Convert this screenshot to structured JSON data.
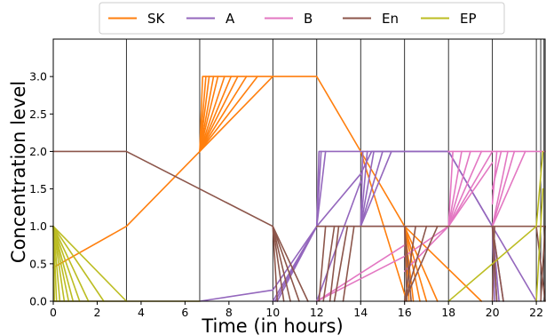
{
  "chart_data": {
    "type": "line",
    "title": "",
    "xlabel": "Time (in hours)",
    "ylabel": "Concentration level",
    "xlim": [
      0,
      22.4
    ],
    "ylim": [
      0,
      3.5
    ],
    "x_ticks": [
      0,
      2,
      4,
      6,
      8,
      10,
      12,
      14,
      16,
      18,
      20,
      22
    ],
    "y_ticks": [
      0.0,
      0.5,
      1.0,
      1.5,
      2.0,
      2.5,
      3.0
    ],
    "x_tick_labels": [
      "0",
      "2",
      "4",
      "6",
      "8",
      "10",
      "12",
      "14",
      "16",
      "18",
      "20",
      "22"
    ],
    "y_tick_labels": [
      "0.0",
      "0.5",
      "1.0",
      "1.5",
      "2.0",
      "2.5",
      "3.0"
    ],
    "grid": false,
    "legend_position": "top-outside",
    "phase_boundaries": [
      3.33,
      6.67,
      10.0,
      12.0,
      14.0,
      16.0,
      18.0,
      20.0,
      22.0,
      22.2,
      22.35
    ],
    "series": [
      {
        "name": "SK",
        "color": "#ff7f0e",
        "lines": [
          [
            [
              0,
              0.45
            ],
            [
              3.33,
              1.0
            ],
            [
              6.67,
              2.0
            ],
            [
              10.0,
              3.0
            ],
            [
              12.0,
              3.0
            ],
            [
              14.0,
              2.0
            ],
            [
              16.0,
              1.0
            ],
            [
              17.0,
              0.0
            ]
          ],
          [
            [
              6.67,
              2.0
            ],
            [
              6.8,
              3.0
            ],
            [
              10.0,
              3.0
            ]
          ],
          [
            [
              6.67,
              2.0
            ],
            [
              6.95,
              3.0
            ]
          ],
          [
            [
              6.67,
              2.0
            ],
            [
              7.1,
              3.0
            ]
          ],
          [
            [
              6.67,
              2.0
            ],
            [
              7.3,
              3.0
            ]
          ],
          [
            [
              6.67,
              2.0
            ],
            [
              7.5,
              3.0
            ]
          ],
          [
            [
              6.67,
              2.0
            ],
            [
              7.8,
              3.0
            ]
          ],
          [
            [
              6.67,
              2.0
            ],
            [
              8.1,
              3.0
            ]
          ],
          [
            [
              6.67,
              2.0
            ],
            [
              8.4,
              3.0
            ]
          ],
          [
            [
              6.67,
              2.0
            ],
            [
              8.8,
              3.0
            ]
          ],
          [
            [
              6.67,
              2.0
            ],
            [
              9.3,
              3.0
            ]
          ],
          [
            [
              14.0,
              2.0
            ],
            [
              16.1,
              0.0
            ]
          ],
          [
            [
              16.0,
              1.0
            ],
            [
              16.2,
              0.0
            ]
          ],
          [
            [
              16.0,
              1.0
            ],
            [
              16.4,
              0.0
            ]
          ],
          [
            [
              16.0,
              1.0
            ],
            [
              16.7,
              0.0
            ]
          ],
          [
            [
              16.0,
              1.0
            ],
            [
              17.5,
              0.0
            ]
          ],
          [
            [
              16.0,
              1.0
            ],
            [
              19.5,
              0.0
            ]
          ]
        ]
      },
      {
        "name": "A",
        "color": "#9467bd",
        "lines": [
          [
            [
              0,
              0.0
            ],
            [
              6.67,
              0.0
            ],
            [
              10.0,
              0.15
            ],
            [
              12.0,
              1.0
            ],
            [
              14.0,
              1.7
            ],
            [
              14.5,
              2.0
            ],
            [
              18.0,
              2.0
            ],
            [
              20.0,
              1.0
            ],
            [
              20.5,
              0.0
            ]
          ],
          [
            [
              10.0,
              0.0
            ],
            [
              12.0,
              1.0
            ],
            [
              16.0,
              1.0
            ]
          ],
          [
            [
              10.1,
              0.0
            ],
            [
              12.0,
              1.0
            ]
          ],
          [
            [
              10.2,
              0.0
            ],
            [
              12.0,
              1.0
            ]
          ],
          [
            [
              12.0,
              1.0
            ],
            [
              12.1,
              2.0
            ],
            [
              18.0,
              2.0
            ]
          ],
          [
            [
              12.0,
              1.0
            ],
            [
              12.2,
              2.0
            ]
          ],
          [
            [
              12.0,
              1.0
            ],
            [
              12.4,
              2.0
            ]
          ],
          [
            [
              12.0,
              0.0
            ],
            [
              14.0,
              1.6
            ]
          ],
          [
            [
              14.0,
              1.0
            ],
            [
              14.1,
              2.0
            ]
          ],
          [
            [
              14.0,
              1.0
            ],
            [
              14.3,
              2.0
            ]
          ],
          [
            [
              14.0,
              1.0
            ],
            [
              14.6,
              2.0
            ]
          ],
          [
            [
              14.0,
              1.0
            ],
            [
              15.0,
              2.0
            ]
          ],
          [
            [
              14.0,
              1.0
            ],
            [
              15.4,
              2.0
            ]
          ],
          [
            [
              18.0,
              2.0
            ],
            [
              20.0,
              1.0
            ],
            [
              20.3,
              0.0
            ]
          ],
          [
            [
              20.0,
              1.0
            ],
            [
              20.1,
              0.0
            ]
          ],
          [
            [
              20.0,
              1.0
            ],
            [
              20.2,
              0.0
            ]
          ],
          [
            [
              20.0,
              1.0
            ],
            [
              22.0,
              0.0
            ]
          ]
        ]
      },
      {
        "name": "B",
        "color": "#e377c2",
        "lines": [
          [
            [
              12.0,
              0.0
            ],
            [
              16.0,
              0.6
            ],
            [
              18.0,
              1.0
            ],
            [
              20.0,
              2.0
            ],
            [
              22.4,
              2.0
            ]
          ],
          [
            [
              12.0,
              0.0
            ],
            [
              16.0,
              0.75
            ]
          ],
          [
            [
              16.0,
              0.4
            ],
            [
              18.0,
              1.0
            ]
          ],
          [
            [
              18.0,
              1.0
            ],
            [
              18.2,
              2.0
            ]
          ],
          [
            [
              18.0,
              1.0
            ],
            [
              18.6,
              2.0
            ]
          ],
          [
            [
              18.0,
              1.0
            ],
            [
              19.0,
              2.0
            ]
          ],
          [
            [
              18.0,
              1.0
            ],
            [
              19.5,
              2.0
            ]
          ],
          [
            [
              18.0,
              1.0
            ],
            [
              20.0,
              1.85
            ]
          ],
          [
            [
              18.0,
              2.0
            ],
            [
              20.0,
              2.0
            ]
          ],
          [
            [
              20.0,
              1.5
            ],
            [
              20.4,
              2.0
            ]
          ],
          [
            [
              20.0,
              1.0
            ],
            [
              20.7,
              2.0
            ]
          ],
          [
            [
              20.0,
              1.0
            ],
            [
              21.0,
              2.0
            ]
          ],
          [
            [
              20.0,
              1.0
            ],
            [
              21.5,
              2.0
            ]
          ],
          [
            [
              20.0,
              1.3
            ],
            [
              20.2,
              2.0
            ]
          ]
        ]
      },
      {
        "name": "En",
        "color": "#8c564b",
        "lines": [
          [
            [
              0,
              2.0
            ],
            [
              3.33,
              2.0
            ],
            [
              10.0,
              1.0
            ],
            [
              10.5,
              0.0
            ]
          ],
          [
            [
              10.0,
              1.0
            ],
            [
              10.2,
              0.0
            ]
          ],
          [
            [
              10.0,
              1.0
            ],
            [
              10.8,
              0.0
            ]
          ],
          [
            [
              10.0,
              1.0
            ],
            [
              11.2,
              0.0
            ]
          ],
          [
            [
              10.0,
              1.0
            ],
            [
              11.6,
              0.0
            ]
          ],
          [
            [
              12.0,
              1.0
            ],
            [
              16.0,
              1.0
            ],
            [
              22.4,
              1.0
            ]
          ],
          [
            [
              12.1,
              0.0
            ],
            [
              12.4,
              1.0
            ]
          ],
          [
            [
              12.3,
              0.0
            ],
            [
              12.8,
              1.0
            ]
          ],
          [
            [
              12.6,
              0.0
            ],
            [
              13.0,
              1.0
            ]
          ],
          [
            [
              12.8,
              0.0
            ],
            [
              13.4,
              1.0
            ]
          ],
          [
            [
              13.2,
              0.0
            ],
            [
              13.7,
              1.0
            ]
          ],
          [
            [
              16.0,
              1.0
            ],
            [
              16.1,
              0.0
            ]
          ],
          [
            [
              16.0,
              1.0
            ],
            [
              16.3,
              0.0
            ]
          ],
          [
            [
              16.0,
              0.0
            ],
            [
              16.5,
              1.0
            ]
          ],
          [
            [
              16.0,
              0.0
            ],
            [
              17.0,
              1.0
            ]
          ],
          [
            [
              16.0,
              0.0
            ],
            [
              17.5,
              1.0
            ]
          ],
          [
            [
              20.0,
              1.0
            ],
            [
              20.2,
              0.0
            ]
          ],
          [
            [
              20.0,
              1.0
            ],
            [
              20.5,
              0.0
            ]
          ],
          [
            [
              20.0,
              0.0
            ],
            [
              20.1,
              1.0
            ]
          ],
          [
            [
              22.0,
              1.0
            ],
            [
              22.4,
              0.0
            ]
          ],
          [
            [
              22.2,
              0.0
            ],
            [
              22.4,
              1.0
            ]
          ]
        ]
      },
      {
        "name": "EP",
        "color": "#bcbd22",
        "lines": [
          [
            [
              0,
              1.0
            ],
            [
              0.05,
              0.0
            ],
            [
              6.67,
              0.0
            ]
          ],
          [
            [
              0,
              1.0
            ],
            [
              0.15,
              0.0
            ]
          ],
          [
            [
              0,
              1.0
            ],
            [
              0.3,
              0.0
            ]
          ],
          [
            [
              0,
              1.0
            ],
            [
              0.5,
              0.0
            ]
          ],
          [
            [
              0,
              1.0
            ],
            [
              0.7,
              0.0
            ]
          ],
          [
            [
              0,
              1.0
            ],
            [
              0.9,
              0.0
            ]
          ],
          [
            [
              0,
              1.0
            ],
            [
              1.2,
              0.0
            ]
          ],
          [
            [
              0,
              1.0
            ],
            [
              1.6,
              0.0
            ]
          ],
          [
            [
              0,
              1.0
            ],
            [
              2.3,
              0.0
            ]
          ],
          [
            [
              0,
              1.0
            ],
            [
              3.33,
              0.0
            ]
          ],
          [
            [
              18.0,
              0.0
            ],
            [
              20.0,
              0.5
            ],
            [
              22.0,
              1.0
            ],
            [
              22.3,
              2.0
            ]
          ],
          [
            [
              22.0,
              0.0
            ],
            [
              22.3,
              1.5
            ]
          ]
        ]
      }
    ]
  }
}
